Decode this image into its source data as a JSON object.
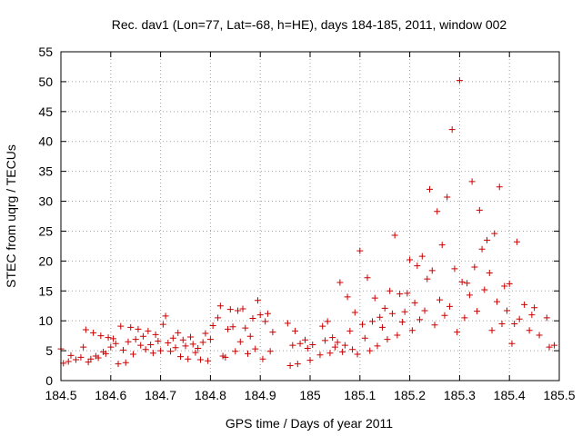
{
  "chart_data": {
    "type": "scatter",
    "title": "Rec. dav1 (Lon=77, Lat=-68, h=HE), days 184-185, 2011, window 002",
    "xlabel": "GPS time / Days of year 2011",
    "ylabel": "STEC from uqrg / TECUs",
    "xlim": [
      184.5,
      185.5
    ],
    "ylim": [
      0,
      55
    ],
    "grid": true,
    "legend": "none",
    "marker": "plus",
    "color": "#cc0000",
    "x_ticks": [
      "184.5",
      "184.6",
      "184.7",
      "184.8",
      "184.9",
      "185",
      "185.1",
      "185.2",
      "185.3",
      "185.4",
      "185.5"
    ],
    "y_ticks": [
      "0",
      "5",
      "10",
      "15",
      "20",
      "25",
      "30",
      "35",
      "40",
      "45",
      "50",
      "55"
    ],
    "series": [
      {
        "points": [
          [
            184.5,
            5.3
          ],
          [
            184.505,
            2.9
          ],
          [
            184.515,
            3.2
          ],
          [
            184.52,
            4.2
          ],
          [
            184.53,
            3.5
          ],
          [
            184.54,
            3.9
          ],
          [
            184.545,
            5.6
          ],
          [
            184.55,
            8.5
          ],
          [
            184.555,
            3.1
          ],
          [
            184.56,
            3.6
          ],
          [
            184.565,
            8.0
          ],
          [
            184.57,
            4.1
          ],
          [
            184.575,
            3.8
          ],
          [
            184.58,
            7.5
          ],
          [
            184.585,
            4.8
          ],
          [
            184.59,
            4.5
          ],
          [
            184.595,
            7.2
          ],
          [
            184.6,
            5.6
          ],
          [
            184.605,
            7.0
          ],
          [
            184.61,
            6.2
          ],
          [
            184.615,
            2.8
          ],
          [
            184.62,
            9.1
          ],
          [
            184.625,
            5.1
          ],
          [
            184.63,
            3.0
          ],
          [
            184.635,
            6.5
          ],
          [
            184.64,
            8.9
          ],
          [
            184.645,
            4.4
          ],
          [
            184.65,
            6.9
          ],
          [
            184.655,
            8.6
          ],
          [
            184.66,
            5.9
          ],
          [
            184.665,
            7.4
          ],
          [
            184.67,
            5.2
          ],
          [
            184.675,
            8.3
          ],
          [
            184.68,
            6.0
          ],
          [
            184.685,
            4.6
          ],
          [
            184.69,
            7.7
          ],
          [
            184.695,
            6.6
          ],
          [
            184.7,
            5.0
          ],
          [
            184.705,
            9.4
          ],
          [
            184.71,
            10.8
          ],
          [
            184.715,
            6.3
          ],
          [
            184.72,
            4.9
          ],
          [
            184.725,
            7.1
          ],
          [
            184.73,
            5.5
          ],
          [
            184.735,
            8.0
          ],
          [
            184.74,
            4.0
          ],
          [
            184.745,
            6.8
          ],
          [
            184.75,
            5.8
          ],
          [
            184.755,
            3.6
          ],
          [
            184.76,
            7.3
          ],
          [
            184.765,
            6.1
          ],
          [
            184.77,
            4.7
          ],
          [
            184.775,
            5.4
          ],
          [
            184.78,
            3.5
          ],
          [
            184.785,
            6.4
          ],
          [
            184.79,
            7.9
          ],
          [
            184.795,
            3.3
          ],
          [
            184.8,
            6.9
          ],
          [
            184.805,
            9.2
          ],
          [
            184.815,
            10.5
          ],
          [
            184.82,
            12.5
          ],
          [
            184.825,
            4.1
          ],
          [
            184.83,
            3.9
          ],
          [
            184.835,
            8.6
          ],
          [
            184.84,
            11.9
          ],
          [
            184.845,
            9.0
          ],
          [
            184.85,
            4.9
          ],
          [
            184.855,
            11.7
          ],
          [
            184.86,
            6.5
          ],
          [
            184.865,
            12.0
          ],
          [
            184.87,
            8.8
          ],
          [
            184.875,
            4.5
          ],
          [
            184.88,
            7.4
          ],
          [
            184.885,
            10.4
          ],
          [
            184.89,
            5.3
          ],
          [
            184.895,
            13.4
          ],
          [
            184.9,
            11.0
          ],
          [
            184.905,
            3.6
          ],
          [
            184.91,
            9.9
          ],
          [
            184.915,
            11.2
          ],
          [
            184.92,
            4.9
          ],
          [
            184.925,
            8.1
          ],
          [
            184.955,
            9.6
          ],
          [
            184.96,
            2.5
          ],
          [
            184.965,
            5.9
          ],
          [
            184.97,
            8.3
          ],
          [
            184.975,
            2.8
          ],
          [
            184.98,
            6.2
          ],
          [
            184.99,
            6.8
          ],
          [
            184.995,
            5.4
          ],
          [
            185.0,
            3.4
          ],
          [
            185.005,
            6.0
          ],
          [
            185.02,
            4.3
          ],
          [
            185.025,
            9.1
          ],
          [
            185.03,
            6.7
          ],
          [
            185.035,
            9.9
          ],
          [
            185.04,
            4.6
          ],
          [
            185.045,
            7.2
          ],
          [
            185.05,
            5.6
          ],
          [
            185.055,
            6.4
          ],
          [
            185.06,
            16.4
          ],
          [
            185.065,
            4.8
          ],
          [
            185.07,
            5.9
          ],
          [
            185.075,
            14.0
          ],
          [
            185.08,
            8.3
          ],
          [
            185.085,
            5.2
          ],
          [
            185.09,
            11.4
          ],
          [
            185.095,
            4.4
          ],
          [
            185.1,
            21.7
          ],
          [
            185.105,
            9.4
          ],
          [
            185.11,
            7.1
          ],
          [
            185.115,
            17.2
          ],
          [
            185.12,
            5.0
          ],
          [
            185.125,
            9.9
          ],
          [
            185.13,
            13.8
          ],
          [
            185.135,
            5.8
          ],
          [
            185.14,
            10.6
          ],
          [
            185.145,
            8.9
          ],
          [
            185.15,
            12.1
          ],
          [
            185.155,
            6.9
          ],
          [
            185.16,
            15.0
          ],
          [
            185.165,
            11.2
          ],
          [
            185.17,
            24.3
          ],
          [
            185.175,
            7.6
          ],
          [
            185.18,
            14.5
          ],
          [
            185.185,
            9.8
          ],
          [
            185.19,
            11.5
          ],
          [
            185.195,
            14.6
          ],
          [
            185.2,
            20.2
          ],
          [
            185.205,
            8.4
          ],
          [
            185.21,
            13.0
          ],
          [
            185.215,
            19.2
          ],
          [
            185.22,
            10.2
          ],
          [
            185.225,
            20.8
          ],
          [
            185.23,
            11.7
          ],
          [
            185.235,
            17.0
          ],
          [
            185.24,
            32.0
          ],
          [
            185.245,
            18.4
          ],
          [
            185.25,
            9.3
          ],
          [
            185.255,
            28.3
          ],
          [
            185.26,
            13.5
          ],
          [
            185.265,
            22.7
          ],
          [
            185.27,
            10.9
          ],
          [
            185.275,
            30.7
          ],
          [
            185.28,
            12.4
          ],
          [
            185.285,
            42.0
          ],
          [
            185.29,
            18.7
          ],
          [
            185.295,
            8.1
          ],
          [
            185.3,
            50.2
          ],
          [
            185.305,
            16.5
          ],
          [
            185.31,
            10.5
          ],
          [
            185.315,
            16.3
          ],
          [
            185.32,
            14.3
          ],
          [
            185.325,
            33.3
          ],
          [
            185.33,
            19.0
          ],
          [
            185.335,
            11.6
          ],
          [
            185.34,
            28.5
          ],
          [
            185.345,
            22.0
          ],
          [
            185.35,
            15.2
          ],
          [
            185.355,
            23.5
          ],
          [
            185.36,
            18.0
          ],
          [
            185.365,
            8.4
          ],
          [
            185.37,
            24.6
          ],
          [
            185.375,
            13.2
          ],
          [
            185.38,
            32.4
          ],
          [
            185.385,
            9.5
          ],
          [
            185.39,
            15.8
          ],
          [
            185.395,
            11.7
          ],
          [
            185.4,
            16.2
          ],
          [
            185.405,
            6.2
          ],
          [
            185.41,
            9.5
          ],
          [
            185.415,
            23.2
          ],
          [
            185.42,
            10.3
          ],
          [
            185.43,
            12.7
          ],
          [
            185.44,
            8.4
          ],
          [
            185.445,
            11.0
          ],
          [
            185.45,
            12.2
          ],
          [
            185.46,
            7.6
          ],
          [
            185.475,
            10.5
          ],
          [
            185.48,
            5.6
          ],
          [
            185.49,
            5.9
          ]
        ]
      }
    ]
  }
}
